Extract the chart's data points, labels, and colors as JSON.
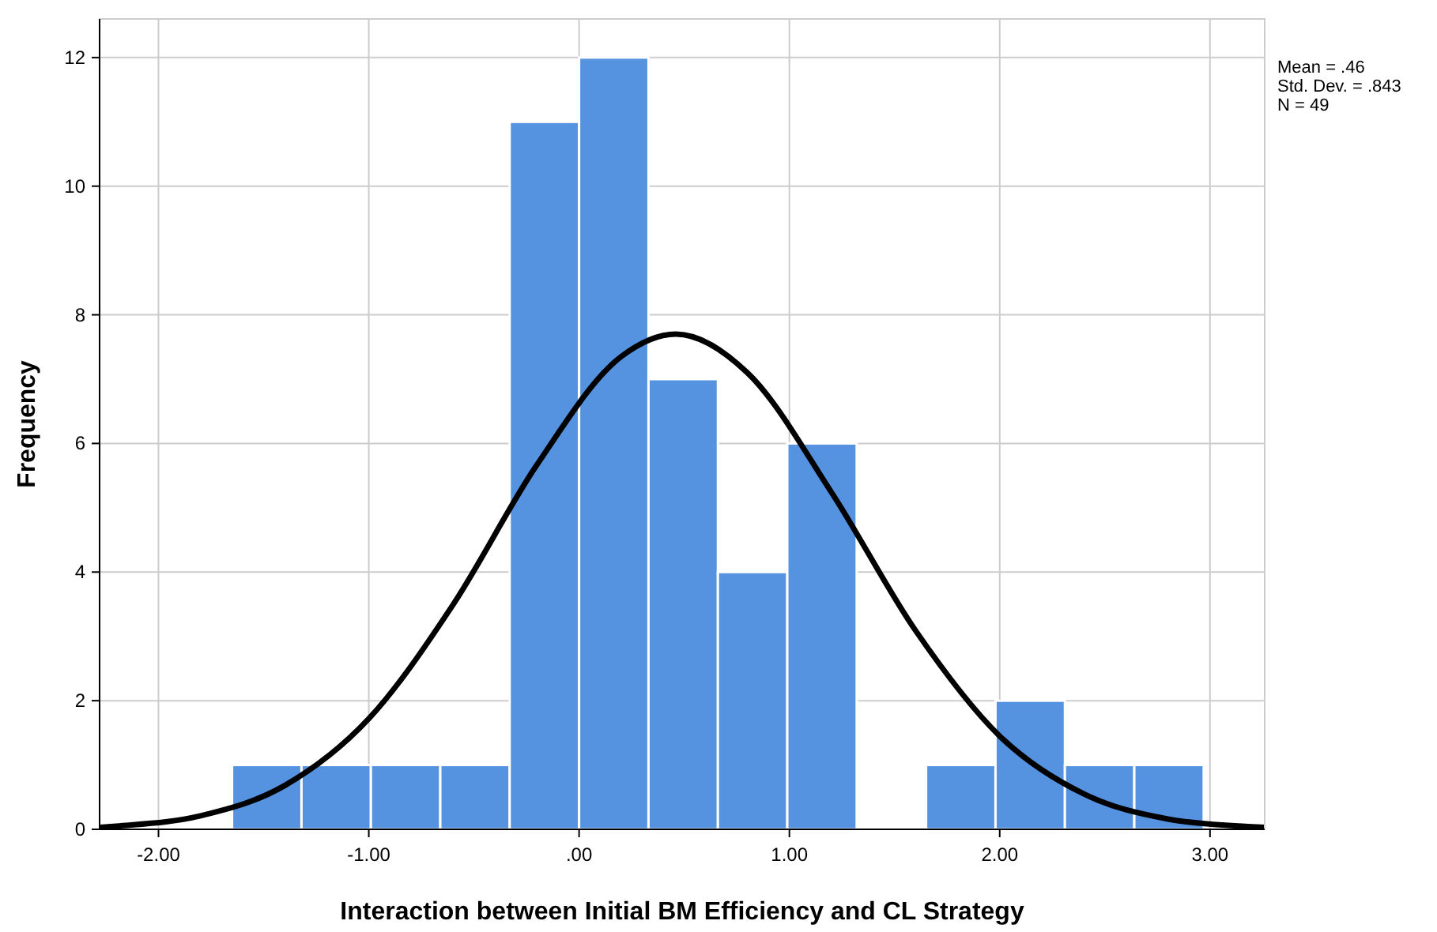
{
  "chart_data": {
    "type": "histogram",
    "xlabel": "Interaction between Initial BM Efficiency and CL Strategy",
    "ylabel": "Frequency",
    "bins": [
      -1.65,
      -1.32,
      -0.99,
      -0.66,
      -0.33,
      0.0,
      0.33,
      0.66,
      0.99,
      1.32,
      1.65,
      1.98,
      2.31,
      2.64,
      2.97
    ],
    "values": [
      1,
      1,
      1,
      1,
      11,
      12,
      7,
      4,
      6,
      0,
      1,
      2,
      1,
      1
    ],
    "color": "#5592e0",
    "series": [
      {
        "type": "line",
        "color": "#000000",
        "x": [
          -2.28,
          -2.2,
          -1.8,
          -1.4,
          -1.0,
          -0.6,
          -0.2,
          0.2,
          0.46,
          0.8,
          1.2,
          1.6,
          2.0,
          2.4,
          2.8,
          3.2,
          3.26
        ],
        "values": [
          0.03,
          0.05,
          0.21,
          0.68,
          1.72,
          3.49,
          5.67,
          7.35,
          7.7,
          7.1,
          5.24,
          3.09,
          1.45,
          0.55,
          0.16,
          0.04,
          0.03
        ]
      }
    ],
    "xlim": [
      -2.28,
      3.26
    ],
    "xticks": [
      {
        "value": -2,
        "label": "-2.00"
      },
      {
        "value": -1,
        "label": "-1.00"
      },
      {
        "value": 0,
        "label": ".00"
      },
      {
        "value": 1,
        "label": "1.00"
      },
      {
        "value": 2,
        "label": "2.00"
      },
      {
        "value": 3,
        "label": "3.00"
      }
    ],
    "ylim": [
      0,
      12.6
    ],
    "yticks": [
      0,
      2,
      4,
      6,
      8,
      10,
      12
    ],
    "grid": true,
    "annotations": [
      "Mean = .46",
      "Std. Dev. = .843",
      "N = 49"
    ]
  }
}
